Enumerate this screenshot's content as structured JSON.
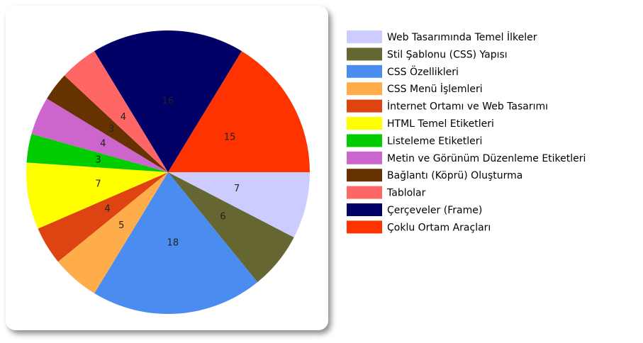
{
  "chart_data": {
    "type": "pie",
    "categories": [
      "Web Tasarımında Temel İlkeler",
      "Stil Şablonu (CSS) Yapısı",
      "CSS Özellikleri",
      "CSS Menü İşlemleri",
      "İnternet Ortamı ve Web Tasarımı",
      "HTML Temel Etiketleri",
      "Listeleme Etiketleri",
      "Metin ve Görünüm Düzenleme Etiketleri",
      "Bağlantı (Köprü) Oluşturma",
      "Tablolar",
      "Çerçeveler (Frame)",
      "Çoklu Ortam Araçları"
    ],
    "values": [
      7,
      6,
      18,
      5,
      4,
      7,
      3,
      4,
      3,
      4,
      16,
      15
    ],
    "colors": [
      "#ccccff",
      "#666633",
      "#4a8cf0",
      "#ffad4a",
      "#dd4411",
      "#ffff00",
      "#00cc00",
      "#cc66cc",
      "#663300",
      "#ff6666",
      "#000066",
      "#ff3300"
    ]
  }
}
